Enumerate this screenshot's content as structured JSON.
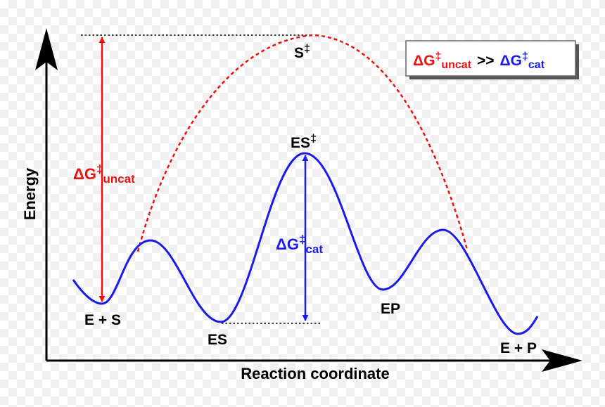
{
  "axes": {
    "y_label": "Energy",
    "x_label": "Reaction coordinate"
  },
  "states": {
    "e_plus_s": "E + S",
    "es": "ES",
    "ep": "EP",
    "e_plus_p": "E + P",
    "s_ts": "S",
    "es_ts": "ES"
  },
  "symbols": {
    "delta_g": "ΔG",
    "double_dagger": "‡",
    "uncat": "uncat",
    "cat": "cat",
    "much_greater": ">>"
  },
  "colors": {
    "uncatalyzed": "#ee1111",
    "catalyzed": "#1a1aee",
    "axis": "#000000"
  }
}
